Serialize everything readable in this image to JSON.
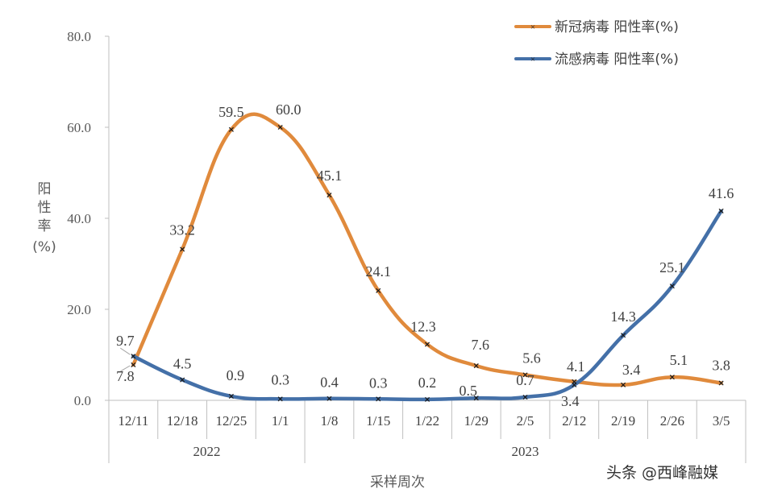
{
  "chart_data": {
    "type": "line",
    "categories": [
      "12/11",
      "12/18",
      "12/25",
      "1/1",
      "1/8",
      "1/15",
      "1/22",
      "1/29",
      "2/5",
      "2/12",
      "2/19",
      "2/26",
      "3/5"
    ],
    "year_groups": [
      {
        "label": "2022",
        "span": [
          0,
          3
        ]
      },
      {
        "label": "2023",
        "span": [
          4,
          12
        ]
      }
    ],
    "series": [
      {
        "name": "新冠病毒 阳性率(%)",
        "color": "#E08A3C",
        "values": [
          7.8,
          33.2,
          59.5,
          60.0,
          45.1,
          24.1,
          12.3,
          7.6,
          5.6,
          4.1,
          3.4,
          5.1,
          3.8
        ],
        "labels": [
          "7.8",
          "33.2",
          "59.5",
          "60.0",
          "45.1",
          "24.1",
          "12.3",
          "7.6",
          "5.6",
          "4.1",
          "3.4",
          "5.1",
          "3.8"
        ]
      },
      {
        "name": "流感病毒 阳性率(%)",
        "color": "#4470A8",
        "values": [
          9.7,
          4.5,
          0.9,
          0.3,
          0.4,
          0.3,
          0.2,
          0.5,
          0.7,
          3.4,
          14.3,
          25.1,
          41.6
        ],
        "labels": [
          "9.7",
          "4.5",
          "0.9",
          "0.3",
          "0.4",
          "0.3",
          "0.2",
          "0.5",
          "0.7",
          "3.4",
          "14.3",
          "25.1",
          "41.6"
        ]
      }
    ],
    "y_ticks": [
      "0.0",
      "20.0",
      "40.0",
      "60.0",
      "80.0"
    ],
    "ylim": [
      0,
      80
    ],
    "ylabel_chars": [
      "阳",
      "性",
      "率",
      "(%)"
    ],
    "xlabel": "采样周次",
    "legend_position": "top-right",
    "grid": false
  },
  "watermark": "头条 @西峰融媒"
}
